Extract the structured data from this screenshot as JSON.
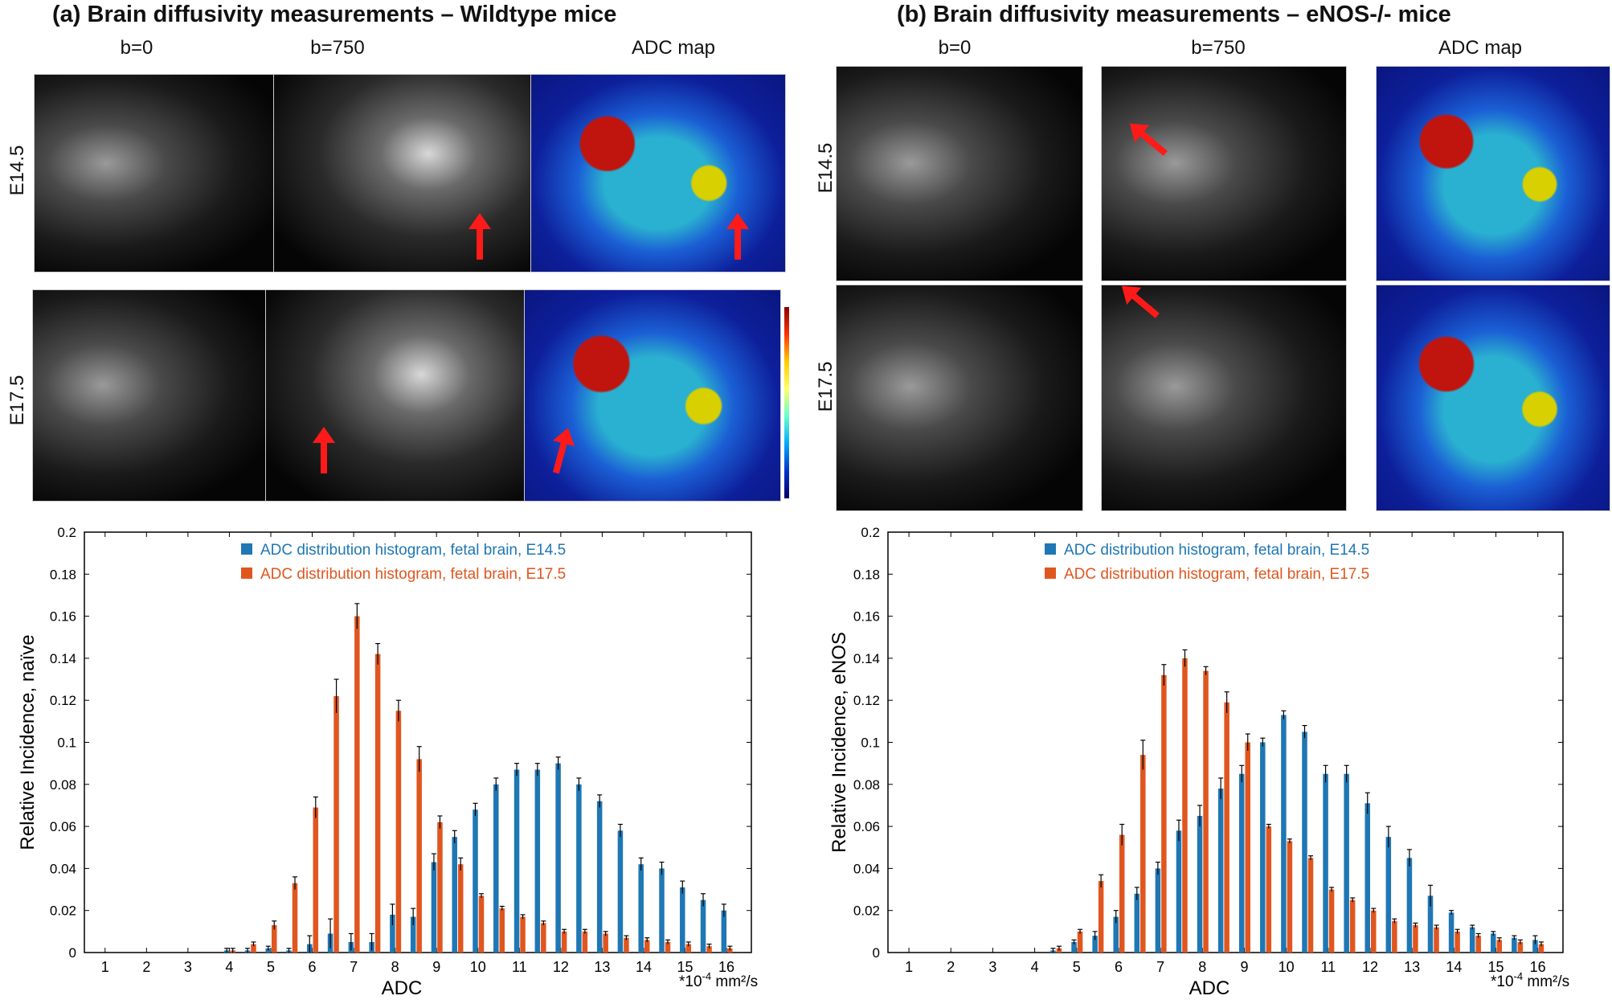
{
  "panels": {
    "a": {
      "title": "(a) Brain diffusivity measurements – Wildtype mice",
      "col_labels": [
        "b=0",
        "b=750",
        "ADC map"
      ],
      "row_labels": [
        "E14.5",
        "E17.5"
      ]
    },
    "b": {
      "title": "(b) Brain diffusivity measurements – eNOS-/- mice",
      "col_labels": [
        "b=0",
        "b=750",
        "ADC map"
      ],
      "row_labels": [
        "E14.5",
        "E17.5"
      ]
    }
  },
  "colors": {
    "e145": "#1f77b4",
    "e175": "#e0561f",
    "arrow": "#ff1a1a"
  },
  "chart_data": [
    {
      "type": "bar",
      "title": "",
      "xlabel": "ADC",
      "x_unit": "*10",
      "x_unit_exp": "-4",
      "x_unit_tail": " mm²/s",
      "ylabel": "Relative Incidence, naïve",
      "ylim": [
        0,
        0.2
      ],
      "yticks": [
        "0",
        "0.02",
        "0.04",
        "0.06",
        "0.08",
        "0.1",
        "0.12",
        "0.14",
        "0.16",
        "0.18",
        "0.2"
      ],
      "x": [
        1,
        1.5,
        2,
        2.5,
        3,
        3.5,
        4,
        4.5,
        5,
        5.5,
        6,
        6.5,
        7,
        7.5,
        8,
        8.5,
        9,
        9.5,
        10,
        10.5,
        11,
        11.5,
        12,
        12.5,
        13,
        13.5,
        14,
        14.5,
        15,
        15.5,
        16
      ],
      "xticks": [
        "1",
        "2",
        "3",
        "4",
        "5",
        "6",
        "7",
        "8",
        "9",
        "10",
        "11",
        "12",
        "13",
        "14",
        "15",
        "16"
      ],
      "series": [
        {
          "name": "ADC distribution histogram, fetal brain, E14.5",
          "values": [
            0,
            0,
            0,
            0,
            0,
            0,
            0.001,
            0.001,
            0.002,
            0.001,
            0.004,
            0.009,
            0.005,
            0.005,
            0.018,
            0.017,
            0.043,
            0.055,
            0.068,
            0.08,
            0.087,
            0.087,
            0.09,
            0.08,
            0.072,
            0.058,
            0.042,
            0.04,
            0.031,
            0.025,
            0.02
          ],
          "err": [
            0,
            0,
            0,
            0,
            0,
            0,
            0.001,
            0.001,
            0.001,
            0.001,
            0.004,
            0.007,
            0.004,
            0.004,
            0.005,
            0.004,
            0.004,
            0.003,
            0.003,
            0.003,
            0.003,
            0.003,
            0.003,
            0.003,
            0.003,
            0.003,
            0.003,
            0.003,
            0.003,
            0.003,
            0.003
          ]
        },
        {
          "name": "ADC distribution histogram, fetal brain, E17.5",
          "values": [
            0,
            0,
            0,
            0,
            0,
            0,
            0.001,
            0.004,
            0.013,
            0.033,
            0.069,
            0.122,
            0.16,
            0.142,
            0.115,
            0.092,
            0.062,
            0.042,
            0.027,
            0.021,
            0.017,
            0.014,
            0.01,
            0.01,
            0.009,
            0.007,
            0.006,
            0.005,
            0.004,
            0.003,
            0.002
          ],
          "err": [
            0,
            0,
            0,
            0,
            0,
            0,
            0.001,
            0.001,
            0.002,
            0.003,
            0.005,
            0.008,
            0.006,
            0.005,
            0.005,
            0.006,
            0.003,
            0.003,
            0.001,
            0.001,
            0.001,
            0.001,
            0.001,
            0.001,
            0.001,
            0.001,
            0.001,
            0.001,
            0.001,
            0.001,
            0.001
          ]
        }
      ],
      "legend": "top-right"
    },
    {
      "type": "bar",
      "title": "",
      "xlabel": "ADC",
      "x_unit": "*10",
      "x_unit_exp": "-4",
      "x_unit_tail": " mm²/s",
      "ylabel": "Relative Incidence, eNOS",
      "ylim": [
        0,
        0.2
      ],
      "yticks": [
        "0",
        "0.02",
        "0.04",
        "0.06",
        "0.08",
        "0.1",
        "0.12",
        "0.14",
        "0.16",
        "0.18",
        "0.2"
      ],
      "x": [
        1,
        1.5,
        2,
        2.5,
        3,
        3.5,
        4,
        4.5,
        5,
        5.5,
        6,
        6.5,
        7,
        7.5,
        8,
        8.5,
        9,
        9.5,
        10,
        10.5,
        11,
        11.5,
        12,
        12.5,
        13,
        13.5,
        14,
        14.5,
        15,
        15.5,
        16
      ],
      "xticks": [
        "1",
        "2",
        "3",
        "4",
        "5",
        "6",
        "7",
        "8",
        "9",
        "10",
        "11",
        "12",
        "13",
        "14",
        "15",
        "16"
      ],
      "series": [
        {
          "name": "ADC distribution histogram, fetal brain, E14.5",
          "values": [
            0,
            0,
            0,
            0,
            0,
            0,
            0,
            0.001,
            0.005,
            0.008,
            0.017,
            0.028,
            0.04,
            0.058,
            0.065,
            0.078,
            0.085,
            0.1,
            0.113,
            0.105,
            0.085,
            0.085,
            0.071,
            0.055,
            0.045,
            0.027,
            0.019,
            0.012,
            0.009,
            0.007,
            0.006
          ],
          "err": [
            0,
            0,
            0,
            0,
            0,
            0,
            0,
            0.001,
            0.001,
            0.002,
            0.003,
            0.003,
            0.003,
            0.005,
            0.005,
            0.005,
            0.004,
            0.002,
            0.002,
            0.003,
            0.004,
            0.004,
            0.005,
            0.005,
            0.004,
            0.005,
            0.001,
            0.001,
            0.001,
            0.001,
            0.002
          ]
        },
        {
          "name": "ADC distribution histogram, fetal brain, E17.5",
          "values": [
            0,
            0,
            0,
            0,
            0,
            0,
            0,
            0.002,
            0.01,
            0.034,
            0.056,
            0.094,
            0.132,
            0.14,
            0.134,
            0.119,
            0.1,
            0.06,
            0.053,
            0.045,
            0.03,
            0.025,
            0.02,
            0.015,
            0.013,
            0.012,
            0.01,
            0.008,
            0.006,
            0.005,
            0.004
          ],
          "err": [
            0,
            0,
            0,
            0,
            0,
            0,
            0,
            0.001,
            0.001,
            0.003,
            0.005,
            0.007,
            0.005,
            0.004,
            0.002,
            0.005,
            0.004,
            0.001,
            0.001,
            0.001,
            0.001,
            0.001,
            0.001,
            0.001,
            0.001,
            0.001,
            0.001,
            0.001,
            0.001,
            0.001,
            0.001
          ]
        }
      ],
      "legend": "top-right"
    }
  ]
}
